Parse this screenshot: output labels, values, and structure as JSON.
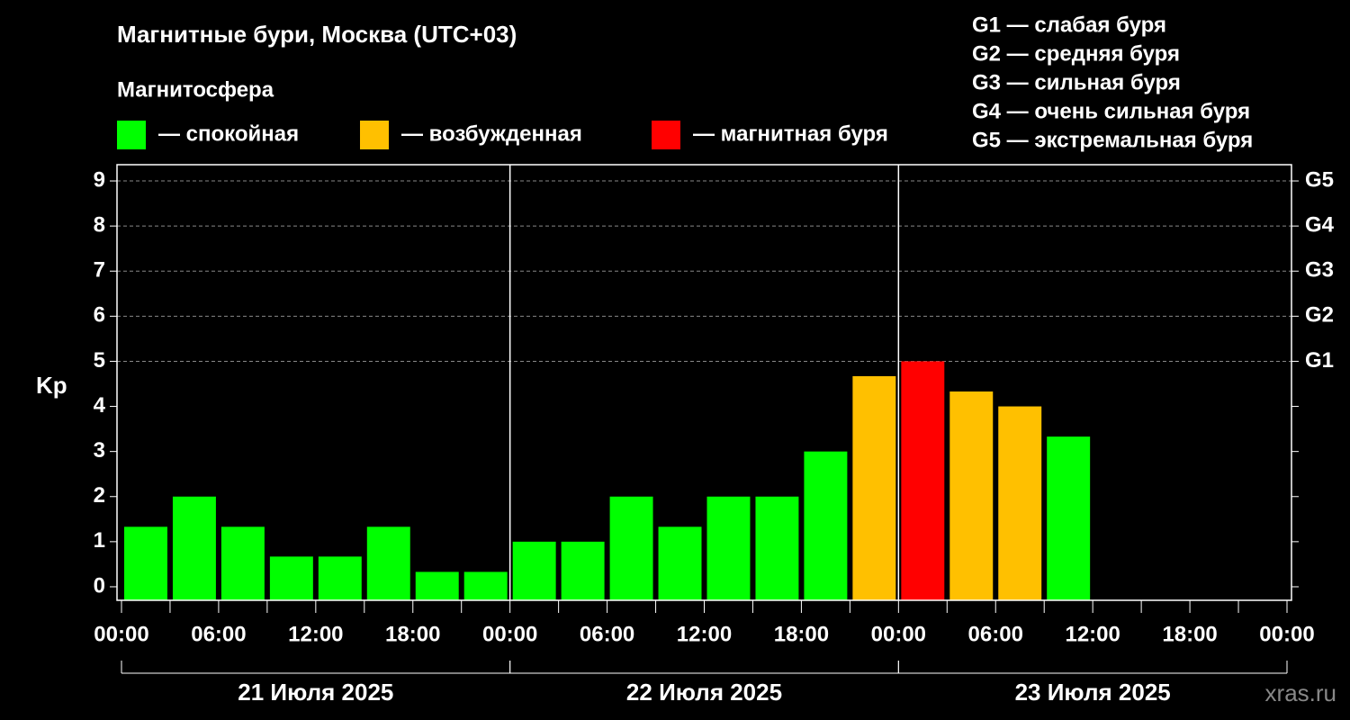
{
  "chart_data": {
    "type": "bar",
    "title": "Магнитные бури, Москва (UTC+03)",
    "subtitle": "Магнитосфера",
    "legend": [
      {
        "label": "— спокойная",
        "color": "#00ff00"
      },
      {
        "label": "— возбужденная",
        "color": "#ffc000"
      },
      {
        "label": "— магнитная буря",
        "color": "#ff0000"
      }
    ],
    "scale_notes": [
      "G1 — слабая буря",
      "G2 — средняя буря",
      "G3 — сильная буря",
      "G4 — очень сильная буря",
      "G5 — экстремальная буря"
    ],
    "ylabel": "Kp",
    "x": [
      1.5,
      4.5,
      7.5,
      10.5,
      13.5,
      16.5,
      19.5,
      22.5,
      25.5,
      28.5,
      31.5,
      34.5,
      37.5,
      40.5,
      43.5,
      46.5,
      49.5,
      52.5,
      55.5,
      58.5
    ],
    "values": [
      1.33,
      2,
      1.33,
      0.67,
      0.67,
      1.33,
      0.33,
      0.33,
      1,
      1,
      2,
      1.33,
      2,
      2,
      3,
      4.67,
      5,
      4.33,
      4,
      3.33
    ],
    "colors": [
      "#00ff00",
      "#00ff00",
      "#00ff00",
      "#00ff00",
      "#00ff00",
      "#00ff00",
      "#00ff00",
      "#00ff00",
      "#00ff00",
      "#00ff00",
      "#00ff00",
      "#00ff00",
      "#00ff00",
      "#00ff00",
      "#00ff00",
      "#ffc000",
      "#ff0000",
      "#ffc000",
      "#ffc000",
      "#00ff00"
    ],
    "xlim": [
      0,
      72
    ],
    "xticks": [
      {
        "value": 0,
        "label": "00:00"
      },
      {
        "value": 6,
        "label": "06:00"
      },
      {
        "value": 12,
        "label": "12:00"
      },
      {
        "value": 18,
        "label": "18:00"
      },
      {
        "value": 24,
        "label": "00:00"
      },
      {
        "value": 30,
        "label": "06:00"
      },
      {
        "value": 36,
        "label": "12:00"
      },
      {
        "value": 42,
        "label": "18:00"
      },
      {
        "value": 48,
        "label": "00:00"
      },
      {
        "value": 54,
        "label": "06:00"
      },
      {
        "value": 60,
        "label": "12:00"
      },
      {
        "value": 66,
        "label": "18:00"
      },
      {
        "value": 72,
        "label": "00:00"
      }
    ],
    "xminorticks": [
      3,
      9,
      15,
      21,
      27,
      33,
      39,
      45,
      51,
      57,
      63,
      69
    ],
    "days": [
      {
        "label": "21 Июля 2025",
        "start": 0,
        "end": 24
      },
      {
        "label": "22 Июля 2025",
        "start": 24,
        "end": 48
      },
      {
        "label": "23 Июля 2025",
        "start": 48,
        "end": 72
      }
    ],
    "ylim": [
      -0.3,
      9.36
    ],
    "yticks": [
      0,
      1,
      2,
      3,
      4,
      5,
      6,
      7,
      8,
      9
    ],
    "y2ticks": [
      {
        "value": 5,
        "label": "G1"
      },
      {
        "value": 6,
        "label": "G2"
      },
      {
        "value": 7,
        "label": "G3"
      },
      {
        "value": 8,
        "label": "G4"
      },
      {
        "value": 9,
        "label": "G5"
      }
    ],
    "grid": true,
    "watermark": "xras.ru"
  }
}
